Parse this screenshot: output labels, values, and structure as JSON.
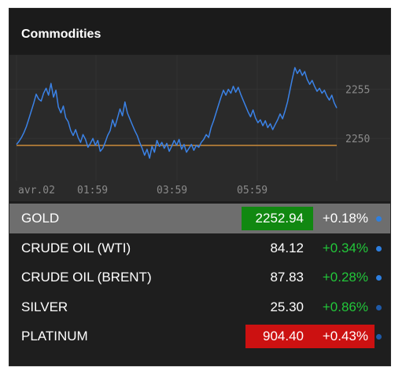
{
  "widget": {
    "title": "Commodities"
  },
  "chart": {
    "x_ticks": [
      "avr.02",
      "01:59",
      "03:59",
      "05:59"
    ],
    "y_ticks": [
      "2255",
      "2250"
    ],
    "line_color": "#3b82e6",
    "baseline_color": "#c98a3a"
  },
  "chart_data": {
    "type": "line",
    "x_ticks": [
      "avr.02",
      "01:59",
      "03:59",
      "05:59"
    ],
    "y_ticks": [
      2255,
      2250
    ],
    "ylim": [
      2246.5,
      2258
    ],
    "reference_line": 2249.3,
    "series": [
      {
        "values": [
          2249.4,
          2249.7,
          2250.1,
          2250.6,
          2251.2,
          2252.0,
          2252.8,
          2253.6,
          2254.5,
          2254.0,
          2253.8,
          2254.6,
          2255.1,
          2254.4,
          2255.6,
          2254.2,
          2254.9,
          2253.2,
          2252.6,
          2253.3,
          2252.1,
          2251.7,
          2250.8,
          2250.3,
          2250.9,
          2250.1,
          2249.6,
          2250.4,
          2249.9,
          2249.1,
          2249.5,
          2250.0,
          2249.3,
          2249.8,
          2248.7,
          2249.0,
          2249.6,
          2250.3,
          2250.8,
          2251.9,
          2251.2,
          2252.1,
          2253.0,
          2252.3,
          2253.7,
          2252.6,
          2252.0,
          2251.4,
          2250.8,
          2250.3,
          2249.6,
          2249.0,
          2248.3,
          2248.9,
          2248.0,
          2249.2,
          2248.6,
          2249.8,
          2249.2,
          2249.6,
          2249.0,
          2249.5,
          2248.7,
          2249.2,
          2249.8,
          2249.3,
          2249.9,
          2248.9,
          2249.4,
          2248.6,
          2249.0,
          2249.4,
          2248.8,
          2249.3,
          2249.1,
          2249.6,
          2249.9,
          2250.4,
          2250.1,
          2251.1,
          2251.8,
          2252.6,
          2253.4,
          2254.2,
          2254.9,
          2254.4,
          2255.0,
          2254.6,
          2255.3,
          2254.7,
          2255.2,
          2254.5,
          2253.9,
          2253.3,
          2252.7,
          2252.2,
          2252.9,
          2252.1,
          2251.6,
          2251.9,
          2251.3,
          2251.8,
          2251.1,
          2251.5,
          2250.9,
          2251.4,
          2251.9,
          2252.5,
          2252.0,
          2252.8,
          2253.7,
          2254.9,
          2256.1,
          2257.2,
          2256.6,
          2257.0,
          2256.4,
          2256.8,
          2256.0,
          2255.5,
          2255.9,
          2255.3,
          2254.8,
          2255.1,
          2254.6,
          2254.9,
          2254.3,
          2253.9,
          2254.4,
          2253.6,
          2253.1
        ]
      }
    ]
  },
  "rows": [
    {
      "name": "GOLD",
      "price": "2252.94",
      "change": "+0.18%",
      "selected": true,
      "badge_color": "#118811"
    },
    {
      "name": "CRUDE OIL (WTI)",
      "price": "84.12",
      "change": "+0.34%",
      "selected": false,
      "badge_color": ""
    },
    {
      "name": "CRUDE OIL (BRENT)",
      "price": "87.83",
      "change": "+0.28%",
      "selected": false,
      "badge_color": ""
    },
    {
      "name": "SILVER",
      "price": "25.30",
      "change": "+0.86%",
      "selected": false,
      "badge_color": ""
    },
    {
      "name": "PLATINUM",
      "price": "904.40",
      "change": "+0.43%",
      "selected": false,
      "badge_color": "#cc1111"
    }
  ],
  "colors": {
    "positive": "#22c73a",
    "dot_bright": "#2d7fe0",
    "dot_dim": "#1f5aa8"
  }
}
